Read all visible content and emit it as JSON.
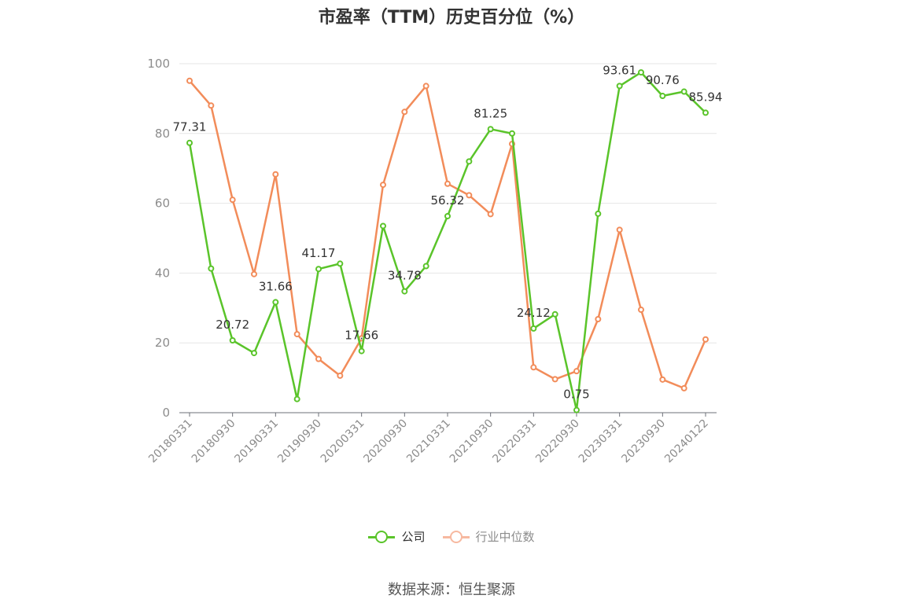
{
  "title": "市盈率（TTM）历史百分位（%）",
  "source_note": "数据来源：恒生聚源",
  "colors": {
    "company": "#5ac42a",
    "industry": "#f28c5a",
    "industry_legend": "#f7b9a0",
    "grid": "#e6e6e6",
    "axis": "#6e7079"
  },
  "legend": [
    {
      "label": "公司",
      "key": "company"
    },
    {
      "label": "行业中位数",
      "key": "industry"
    }
  ],
  "chart_data": {
    "type": "line",
    "title": "市盈率（TTM）历史百分位（%）",
    "xlabel": "",
    "ylabel": "",
    "ylim": [
      0,
      100
    ],
    "yticks": [
      0,
      20,
      40,
      60,
      80,
      100
    ],
    "grid": true,
    "legend_position": "bottom",
    "x": [
      "20180331",
      "20180630",
      "20180930",
      "20181231",
      "20190331",
      "20190630",
      "20190930",
      "20191231",
      "20200331",
      "20200630",
      "20200930",
      "20201231",
      "20210331",
      "20210630",
      "20210930",
      "20211231",
      "20220331",
      "20220630",
      "20220930",
      "20221231",
      "20230331",
      "20230630",
      "20230930",
      "20231231",
      "20240122"
    ],
    "xtick_labels": [
      "20180331",
      "20180930",
      "20190331",
      "20190930",
      "20200331",
      "20200930",
      "20210331",
      "20210930",
      "20220331",
      "20220930",
      "20230331",
      "20230930",
      "20240122"
    ],
    "series": [
      {
        "name": "公司",
        "key": "company",
        "values": [
          77.31,
          41.3,
          20.72,
          17.1,
          31.66,
          3.9,
          41.17,
          42.7,
          17.66,
          53.5,
          34.78,
          42.0,
          56.32,
          72.0,
          81.25,
          80.0,
          24.12,
          28.2,
          0.75,
          57.0,
          93.61,
          97.5,
          90.76,
          92.0,
          85.94
        ],
        "labels": [
          "77.31",
          "",
          "20.72",
          "",
          "31.66",
          "",
          "41.17",
          "",
          "17.66",
          "",
          "34.78",
          "",
          "56.32",
          "",
          "81.25",
          "",
          "24.12",
          "",
          "0.75",
          "",
          "93.61",
          "",
          "90.76",
          "",
          "85.94"
        ]
      },
      {
        "name": "行业中位数",
        "key": "industry",
        "values": [
          95.1,
          88.0,
          61.0,
          39.7,
          68.3,
          22.5,
          15.4,
          10.6,
          21.3,
          65.3,
          86.2,
          93.6,
          65.6,
          62.3,
          56.9,
          77.0,
          13.0,
          9.6,
          11.9,
          26.8,
          52.4,
          29.5,
          9.5,
          7.0,
          21.0
        ]
      }
    ]
  }
}
